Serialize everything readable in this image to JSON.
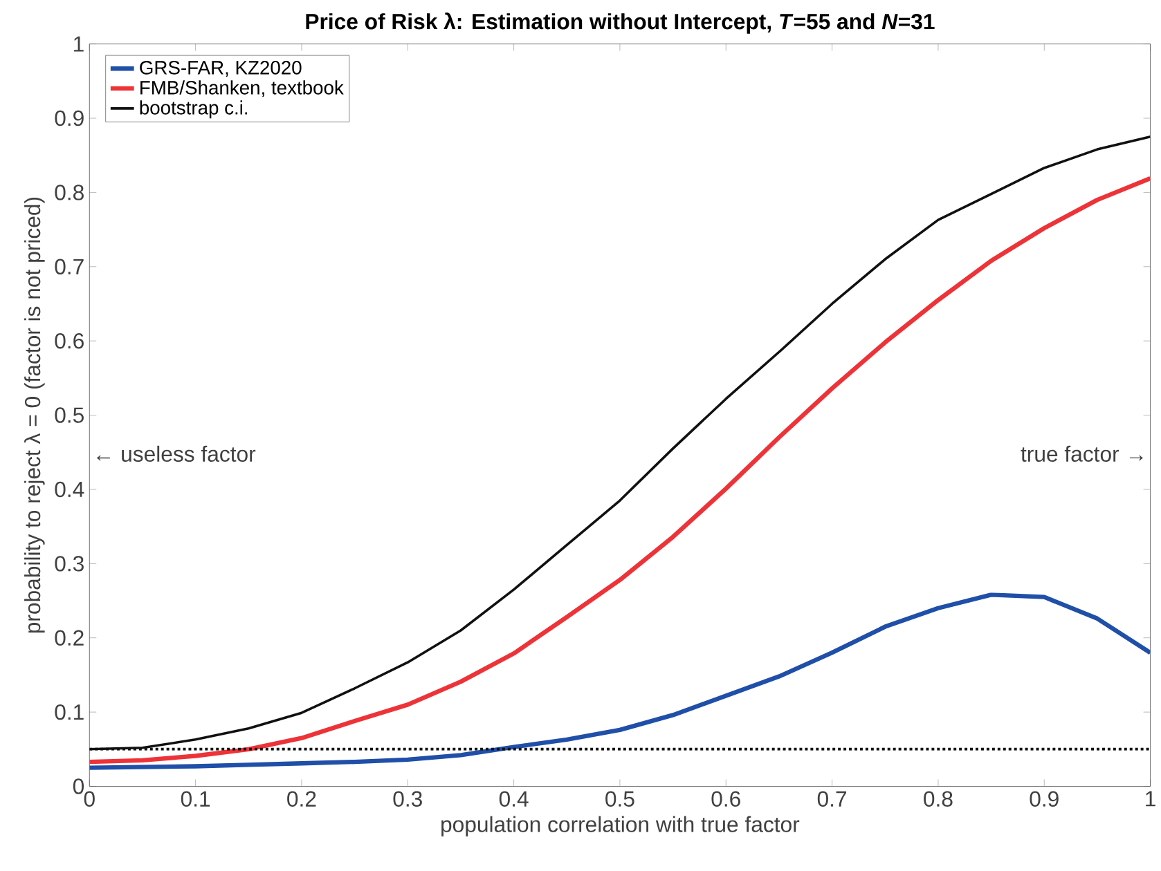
{
  "chart_data": {
    "type": "line",
    "title": "Price of Risk λ: Estimation without Intercept, *T*=55 and *N*=31",
    "xlabel": "population correlation with true factor",
    "ylabel": "probability to reject λ = 0 (factor is not priced)",
    "x": [
      0,
      0.05,
      0.1,
      0.15,
      0.2,
      0.25,
      0.3,
      0.35,
      0.4,
      0.45,
      0.5,
      0.55,
      0.6,
      0.65,
      0.7,
      0.75,
      0.8,
      0.85,
      0.9,
      0.95,
      1
    ],
    "series": [
      {
        "name": "GRS-FAR, KZ2020",
        "color": "#1f4fa8",
        "values": [
          0.025,
          0.026,
          0.027,
          0.029,
          0.031,
          0.033,
          0.036,
          0.042,
          0.053,
          0.063,
          0.076,
          0.096,
          0.122,
          0.148,
          0.18,
          0.215,
          0.24,
          0.258,
          0.255,
          0.226,
          0.18
        ]
      },
      {
        "name": "FMB/Shanken, textbook",
        "color": "#ee3338",
        "values": [
          0.033,
          0.035,
          0.041,
          0.05,
          0.065,
          0.088,
          0.11,
          0.141,
          0.179,
          0.228,
          0.278,
          0.336,
          0.401,
          0.47,
          0.536,
          0.598,
          0.655,
          0.708,
          0.752,
          0.79,
          0.819
        ]
      },
      {
        "name": "bootstrap c.i.",
        "color": "#111111",
        "values": [
          0.05,
          0.052,
          0.063,
          0.078,
          0.099,
          0.132,
          0.167,
          0.21,
          0.265,
          0.325,
          0.385,
          0.455,
          0.522,
          0.585,
          0.65,
          0.71,
          0.763,
          0.798,
          0.833,
          0.858,
          0.875
        ]
      }
    ],
    "xlim": [
      0,
      1
    ],
    "ylim": [
      0,
      1
    ],
    "xticks": [
      0,
      0.1,
      0.2,
      0.3,
      0.4,
      0.5,
      0.6,
      0.7,
      0.8,
      0.9,
      1
    ],
    "yticks": [
      0,
      0.1,
      0.2,
      0.3,
      0.4,
      0.5,
      0.6,
      0.7,
      0.8,
      0.9,
      1
    ],
    "ref_lines": [
      {
        "axis": "y",
        "value": 0.05,
        "color": "#111111",
        "line_style": "dotted"
      }
    ],
    "annotations": [
      "← useless factor",
      "true factor →"
    ],
    "legend": "top left",
    "grid": false
  }
}
